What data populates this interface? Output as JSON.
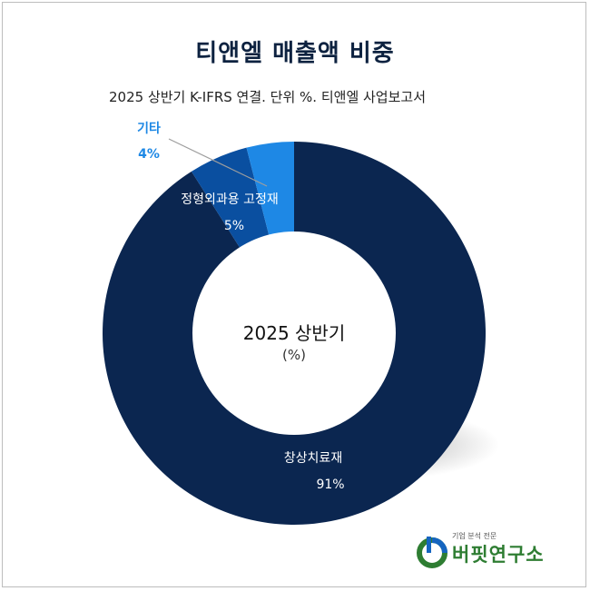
{
  "title": "티앤엘 매출액 비중",
  "subtitle": "2025 상반기 K-IFRS 연결. 단위 %. 티앤엘 사업보고서",
  "center": {
    "title": "2025 상반기",
    "unit": "(%)"
  },
  "colors": {
    "dark": "#0b2650",
    "mid": "#0a4fa0",
    "light": "#1e88e5",
    "title": "#0d2240"
  },
  "chart_data": {
    "type": "pie",
    "style": "donut",
    "title": "티앤엘 매출액 비중",
    "subtitle": "2025 상반기 K-IFRS 연결. 단위 %. 티앤엘 사업보고서",
    "center_label": "2025 상반기",
    "center_unit": "(%)",
    "categories": [
      "창상치료재",
      "정형외과용 고정재",
      "기타"
    ],
    "values": [
      91,
      5,
      4
    ],
    "value_labels": [
      "91%",
      "5%",
      "4%"
    ]
  },
  "logo": {
    "small_text": "기업 분석 전문",
    "main_text": "버핏연구소"
  }
}
